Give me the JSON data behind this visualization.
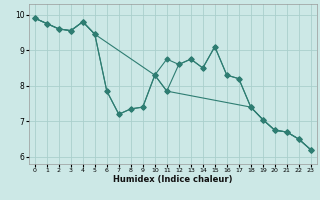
{
  "xlabel": "Humidex (Indice chaleur)",
  "xlim": [
    -0.5,
    23.5
  ],
  "ylim": [
    5.8,
    10.3
  ],
  "yticks": [
    6,
    7,
    8,
    9,
    10
  ],
  "xticks": [
    0,
    1,
    2,
    3,
    4,
    5,
    6,
    7,
    8,
    9,
    10,
    11,
    12,
    13,
    14,
    15,
    16,
    17,
    18,
    19,
    20,
    21,
    22,
    23
  ],
  "bg_color": "#cce8e6",
  "grid_color": "#aacfcc",
  "line_color": "#2e7d72",
  "line1": {
    "x": [
      0,
      1,
      2,
      3,
      4,
      5,
      10,
      11,
      12,
      13,
      14,
      15,
      16,
      17,
      18,
      19,
      20,
      21,
      22,
      23
    ],
    "y": [
      9.9,
      9.75,
      9.6,
      9.55,
      9.8,
      9.45,
      8.3,
      8.75,
      8.6,
      8.75,
      8.5,
      9.1,
      8.3,
      8.2,
      7.4,
      7.05,
      6.75,
      6.7,
      6.5,
      6.2
    ]
  },
  "line2": {
    "x": [
      0,
      1,
      2,
      3,
      4,
      5,
      6,
      7,
      8,
      9,
      10,
      11,
      18,
      19,
      20,
      21,
      22,
      23
    ],
    "y": [
      9.9,
      9.75,
      9.6,
      9.55,
      9.8,
      9.45,
      7.85,
      7.2,
      7.35,
      7.4,
      8.3,
      7.85,
      7.4,
      7.05,
      6.75,
      6.7,
      6.5,
      6.2
    ]
  },
  "line3": {
    "x": [
      0,
      1,
      2,
      3,
      4,
      5,
      6,
      7,
      8,
      9,
      10,
      11,
      12,
      13,
      14,
      15,
      16,
      17,
      18,
      19,
      20,
      21,
      22,
      23
    ],
    "y": [
      9.9,
      9.75,
      9.6,
      9.55,
      9.8,
      9.45,
      7.85,
      7.2,
      7.35,
      7.4,
      8.3,
      7.85,
      8.6,
      8.75,
      8.5,
      9.1,
      8.3,
      8.2,
      7.4,
      7.05,
      6.75,
      6.7,
      6.5,
      6.2
    ]
  }
}
